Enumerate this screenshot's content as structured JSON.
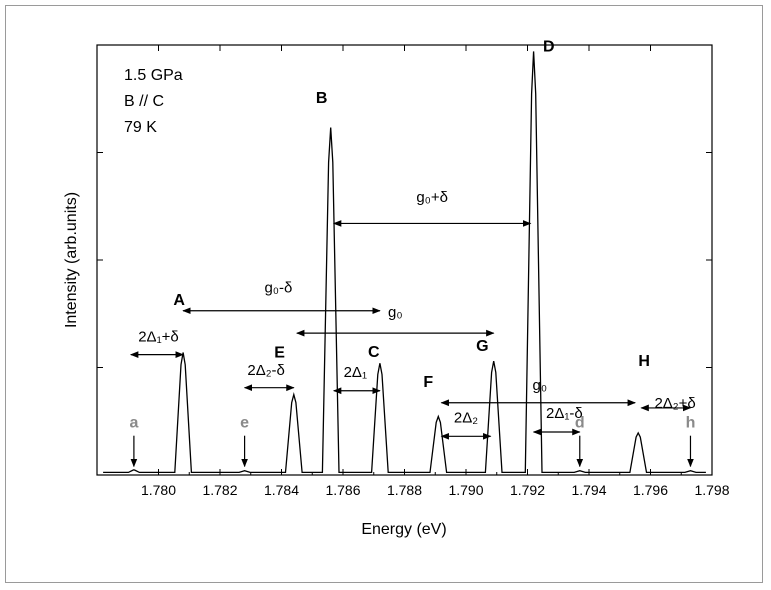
{
  "chart_data": {
    "type": "line",
    "xlabel": "Energy (eV)",
    "ylabel": "Intensity (arb.units)",
    "xlim": [
      1.778,
      1.798
    ],
    "ylim": [
      0,
      1.0
    ],
    "x_ticks": [
      "1.780",
      "1.782",
      "1.784",
      "1.786",
      "1.788",
      "1.790",
      "1.792",
      "1.794",
      "1.796",
      "1.798"
    ],
    "y_tick_values": [
      0.25,
      0.5,
      0.75,
      1.0
    ],
    "y_tick_labels_shown": false,
    "conditions": [
      "1.5 GPa",
      "B // C",
      "79 K"
    ],
    "baseline": 0.006,
    "peaks": [
      {
        "label": "a",
        "x": 1.7792,
        "y": 0.012,
        "labeled_color": "#8a8a8a"
      },
      {
        "label": "A",
        "x": 1.7808,
        "y": 0.285
      },
      {
        "label": "e",
        "x": 1.7828,
        "y": 0.01,
        "labeled_color": "#8a8a8a"
      },
      {
        "label": "E",
        "x": 1.7844,
        "y": 0.187
      },
      {
        "label": "B",
        "x": 1.7856,
        "y": 0.808
      },
      {
        "label": "C",
        "x": 1.7872,
        "y": 0.26
      },
      {
        "label": "F",
        "x": 1.7891,
        "y": 0.136
      },
      {
        "label": "G",
        "x": 1.7909,
        "y": 0.265
      },
      {
        "label": "D",
        "x": 1.7922,
        "y": 0.985
      },
      {
        "label": "d",
        "x": 1.7937,
        "y": 0.01,
        "labeled_color": "#8a8a8a"
      },
      {
        "label": "H",
        "x": 1.7956,
        "y": 0.098
      },
      {
        "label": "h",
        "x": 1.7973,
        "y": 0.01,
        "labeled_color": "#8a8a8a"
      }
    ],
    "annotations": [
      {
        "text": "g₀+δ",
        "x1": 1.7857,
        "x2": 1.7921,
        "y": 0.585,
        "label_y": 0.635,
        "label_x": 1.7889
      },
      {
        "text": "g₀-δ",
        "x1": 1.7808,
        "x2": 1.7872,
        "y": 0.382,
        "label_y": 0.425,
        "label_x": 1.7839
      },
      {
        "text": "g₀",
        "x1": 1.7845,
        "x2": 1.7909,
        "y": 0.33,
        "label_y": 0.368,
        "label_x": 1.7877
      },
      {
        "text": "2Δ₁+δ",
        "x1": 1.7791,
        "x2": 1.7808,
        "y": 0.28,
        "label_y": 0.31,
        "label_x": 1.78
      },
      {
        "text": "2Δ₂-δ",
        "x1": 1.7828,
        "x2": 1.7844,
        "y": 0.203,
        "label_y": 0.233,
        "label_x": 1.7835
      },
      {
        "text": "2Δ₁",
        "x1": 1.7857,
        "x2": 1.7872,
        "y": 0.196,
        "label_y": 0.228,
        "label_x": 1.7864
      },
      {
        "text": "g₀",
        "x1": 1.7892,
        "x2": 1.7955,
        "y": 0.168,
        "label_y": 0.198,
        "label_x": 1.7924
      },
      {
        "text": "2Δ₂",
        "x1": 1.7892,
        "x2": 1.7908,
        "y": 0.09,
        "label_y": 0.122,
        "label_x": 1.79
      },
      {
        "text": "2Δ₁-δ",
        "x1": 1.7922,
        "x2": 1.7937,
        "y": 0.1,
        "label_y": 0.132,
        "label_x": 1.7932
      },
      {
        "text": "2Δ₂+δ",
        "x1": 1.7957,
        "x2": 1.7973,
        "y": 0.156,
        "label_y": 0.156,
        "label_x": 1.7968
      }
    ],
    "colors": {
      "line": "#000000",
      "satellite_label": "#8a8a8a"
    }
  }
}
